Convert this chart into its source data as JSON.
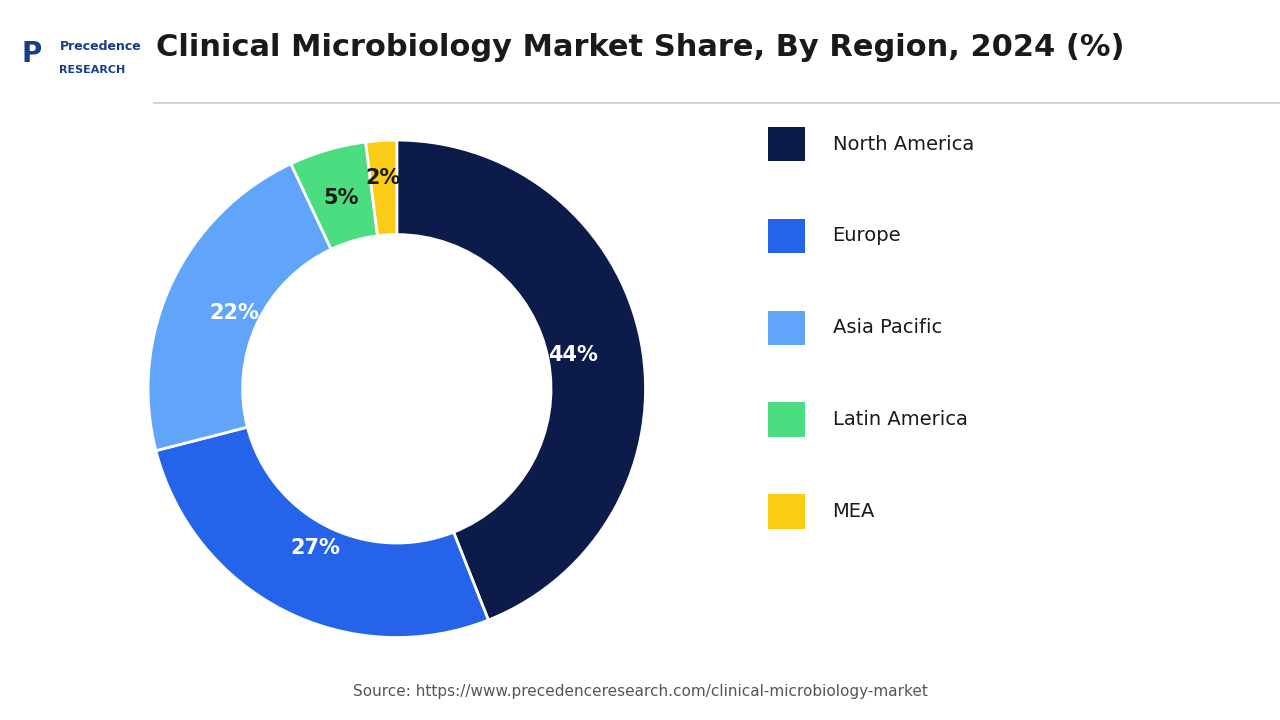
{
  "title": "Clinical Microbiology Market Share, By Region, 2024 (%)",
  "source_text": "Source: https://www.precedenceresearch.com/clinical-microbiology-market",
  "segments": [
    {
      "label": "North America",
      "value": 44,
      "color": "#0d1b4b"
    },
    {
      "label": "Europe",
      "value": 27,
      "color": "#2563eb"
    },
    {
      "label": "Asia Pacific",
      "value": 22,
      "color": "#60a5fa"
    },
    {
      "label": "Latin America",
      "value": 5,
      "color": "#4ade80"
    },
    {
      "label": "MEA",
      "value": 2,
      "color": "#facc15"
    }
  ],
  "bg_color": "#ffffff",
  "title_color": "#1a1a1a",
  "title_fontsize": 22,
  "legend_fontsize": 14,
  "pct_fontsize": 15,
  "source_fontsize": 11,
  "donut_width": 0.38,
  "start_angle": 90
}
